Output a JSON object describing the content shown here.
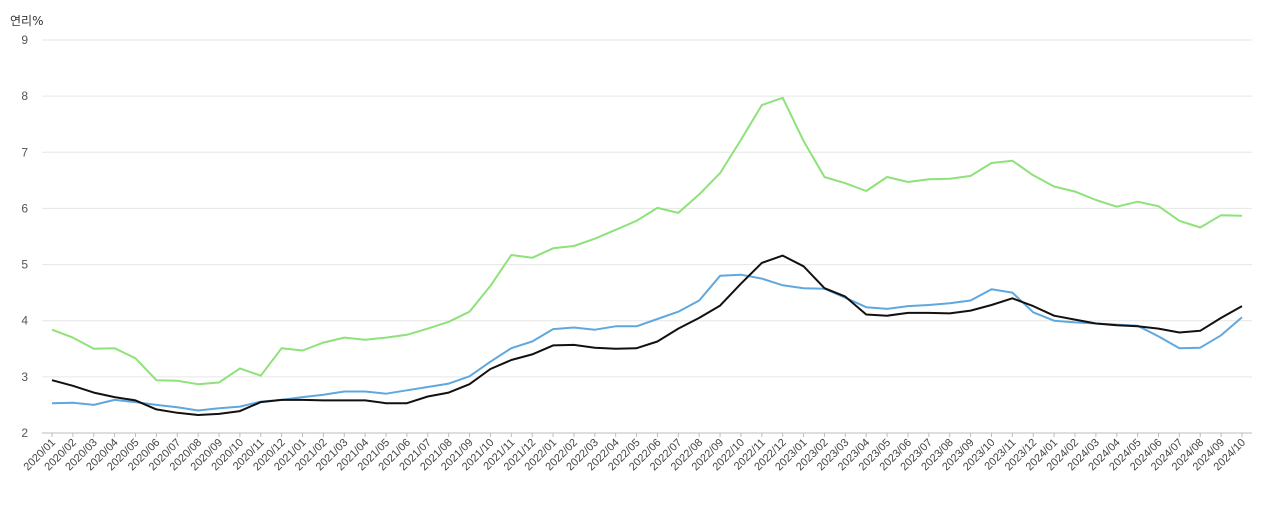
{
  "chart_data": {
    "type": "line",
    "ylabel": "연리%",
    "ylim": [
      2,
      9
    ],
    "yticks": [
      2,
      3,
      4,
      5,
      6,
      7,
      8,
      9
    ],
    "grid": true,
    "categories": [
      "2020/01",
      "2020/02",
      "2020/03",
      "2020/04",
      "2020/05",
      "2020/06",
      "2020/07",
      "2020/08",
      "2020/09",
      "2020/10",
      "2020/11",
      "2020/12",
      "2021/01",
      "2021/02",
      "2021/03",
      "2021/04",
      "2021/05",
      "2021/06",
      "2021/07",
      "2021/08",
      "2021/09",
      "2021/10",
      "2021/11",
      "2021/12",
      "2022/01",
      "2022/02",
      "2022/03",
      "2022/04",
      "2022/05",
      "2022/06",
      "2022/07",
      "2022/08",
      "2022/09",
      "2022/10",
      "2022/11",
      "2022/12",
      "2023/01",
      "2023/02",
      "2023/03",
      "2023/04",
      "2023/05",
      "2023/06",
      "2023/07",
      "2023/08",
      "2023/09",
      "2023/10",
      "2023/11",
      "2023/12",
      "2024/01",
      "2024/02",
      "2024/03",
      "2024/04",
      "2024/05",
      "2024/06",
      "2024/07",
      "2024/08",
      "2024/09",
      "2024/10"
    ],
    "series": [
      {
        "color": "#8ee27a",
        "values": [
          3.84,
          3.7,
          3.5,
          3.51,
          3.33,
          2.94,
          2.93,
          2.87,
          2.9,
          3.15,
          3.02,
          3.51,
          3.47,
          3.61,
          3.7,
          3.66,
          3.7,
          3.75,
          3.86,
          3.98,
          4.16,
          4.62,
          5.17,
          5.12,
          5.29,
          5.33,
          5.46,
          5.62,
          5.78,
          6.01,
          5.92,
          6.25,
          6.63,
          7.22,
          7.84,
          7.97,
          7.2,
          6.56,
          6.45,
          6.31,
          6.56,
          6.47,
          6.52,
          6.53,
          6.58,
          6.81,
          6.85,
          6.59,
          6.39,
          6.3,
          6.15,
          6.03,
          6.12,
          6.04,
          5.78,
          5.66,
          5.88,
          5.87
        ]
      },
      {
        "color": "#5fa8de",
        "values": [
          2.53,
          2.54,
          2.5,
          2.59,
          2.55,
          2.5,
          2.46,
          2.4,
          2.44,
          2.47,
          2.56,
          2.59,
          2.64,
          2.68,
          2.74,
          2.74,
          2.7,
          2.76,
          2.82,
          2.88,
          3.01,
          3.27,
          3.51,
          3.63,
          3.85,
          3.88,
          3.84,
          3.9,
          3.9,
          4.03,
          4.16,
          4.36,
          4.8,
          4.82,
          4.75,
          4.63,
          4.58,
          4.57,
          4.41,
          4.24,
          4.21,
          4.26,
          4.28,
          4.31,
          4.36,
          4.56,
          4.5,
          4.15,
          4.0,
          3.97,
          3.95,
          3.93,
          3.91,
          3.72,
          3.51,
          3.52,
          3.74,
          4.06
        ]
      },
      {
        "color": "#111111",
        "values": [
          2.94,
          2.84,
          2.72,
          2.64,
          2.58,
          2.42,
          2.36,
          2.32,
          2.34,
          2.39,
          2.55,
          2.59,
          2.59,
          2.58,
          2.58,
          2.58,
          2.53,
          2.53,
          2.65,
          2.72,
          2.87,
          3.14,
          3.3,
          3.4,
          3.56,
          3.57,
          3.52,
          3.5,
          3.51,
          3.63,
          3.86,
          4.05,
          4.27,
          4.66,
          5.03,
          5.16,
          4.97,
          4.58,
          4.43,
          4.11,
          4.09,
          4.14,
          4.14,
          4.13,
          4.18,
          4.28,
          4.4,
          4.26,
          4.09,
          4.02,
          3.95,
          3.92,
          3.9,
          3.86,
          3.79,
          3.82,
          4.05,
          4.26
        ]
      }
    ]
  }
}
